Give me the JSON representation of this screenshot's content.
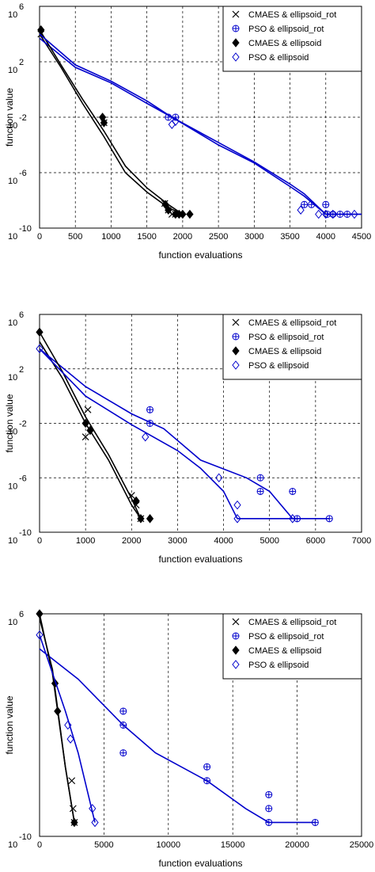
{
  "chart_data": [
    {
      "type": "line",
      "y_scale": "log",
      "xlabel": "function evaluations",
      "ylabel": "function value",
      "xlim": [
        0,
        4500
      ],
      "ylim": [
        1e-10,
        1000000.0
      ],
      "x_ticks": [
        "0",
        "500",
        "1000",
        "1500",
        "2000",
        "2500",
        "3000",
        "3500",
        "4000",
        "4500"
      ],
      "y_ticks": [
        {
          "base": "10",
          "exp": "6"
        },
        {
          "base": "10",
          "exp": "2"
        },
        {
          "base": "10",
          "exp": "-2"
        },
        {
          "base": "10",
          "exp": "-6"
        },
        {
          "base": "10",
          "exp": "-10"
        }
      ],
      "grid": "dashed",
      "legend_position": "top-right",
      "series": [
        {
          "name": "CMAES & ellipsoid_rot",
          "color": "#000000",
          "marker": "x",
          "line": [
            [
              0,
              10000
            ],
            [
              300,
              40
            ],
            [
              600,
              0.1
            ],
            [
              900,
              0.0004
            ],
            [
              1200,
              1e-06
            ],
            [
              1500,
              4e-08
            ],
            [
              1800,
              3e-09
            ],
            [
              2000,
              1e-09
            ]
          ],
          "points": [
            [
              20,
              10000
            ],
            [
              900,
              0.004
            ],
            [
              1750,
              6e-09
            ],
            [
              1800,
              2e-09
            ],
            [
              1850,
              1e-09
            ],
            [
              1900,
              1e-09
            ],
            [
              1950,
              1e-09
            ]
          ]
        },
        {
          "name": "PSO & ellipsoid_rot",
          "color": "#0000cc",
          "marker": "circle-plus",
          "line": [
            [
              0,
              5000
            ],
            [
              500,
              40
            ],
            [
              1000,
              3
            ],
            [
              1500,
              0.1
            ],
            [
              1850,
              0.01
            ],
            [
              2500,
              0.0001
            ],
            [
              3000,
              5e-06
            ],
            [
              3500,
              1e-07
            ],
            [
              3700,
              2e-08
            ],
            [
              4000,
              1e-09
            ],
            [
              4500,
              1e-09
            ]
          ],
          "points": [
            [
              1800,
              0.01
            ],
            [
              1900,
              0.01
            ],
            [
              3700,
              5e-09
            ],
            [
              3800,
              5e-09
            ],
            [
              4000,
              5e-09
            ],
            [
              4020,
              1e-09
            ],
            [
              4100,
              1e-09
            ],
            [
              4200,
              1e-09
            ],
            [
              4300,
              1e-09
            ]
          ]
        },
        {
          "name": "CMAES & ellipsoid",
          "color": "#000000",
          "marker": "diamond-filled",
          "line": [
            [
              0,
              20000
            ],
            [
              300,
              60
            ],
            [
              600,
              0.2
            ],
            [
              900,
              0.001
            ],
            [
              1200,
              3e-06
            ],
            [
              1500,
              8e-08
            ],
            [
              1800,
              5e-09
            ],
            [
              2000,
              1e-09
            ]
          ],
          "points": [
            [
              20,
              20000
            ],
            [
              880,
              0.01
            ],
            [
              900,
              0.004
            ],
            [
              1760,
              5e-09
            ],
            [
              1800,
              2e-09
            ],
            [
              1900,
              1e-09
            ],
            [
              1950,
              1e-09
            ],
            [
              2000,
              1e-09
            ],
            [
              2100,
              1e-09
            ]
          ]
        },
        {
          "name": "PSO & ellipsoid",
          "color": "#0000cc",
          "marker": "diamond",
          "line": [
            [
              0,
              10000
            ],
            [
              500,
              60
            ],
            [
              1000,
              4
            ],
            [
              1500,
              0.15
            ],
            [
              1850,
              0.01
            ],
            [
              2500,
              0.00015
            ],
            [
              3000,
              6e-06
            ],
            [
              3500,
              1.5e-07
            ],
            [
              3700,
              3e-08
            ],
            [
              4000,
              1e-09
            ],
            [
              4500,
              1e-09
            ]
          ],
          "points": [
            [
              1850,
              0.003
            ],
            [
              1900,
              0.005
            ],
            [
              3650,
              2e-09
            ],
            [
              3900,
              1e-09
            ],
            [
              4000,
              1e-09
            ],
            [
              4100,
              1e-09
            ],
            [
              4400,
              1e-09
            ]
          ]
        }
      ]
    },
    {
      "type": "line",
      "y_scale": "log",
      "xlabel": "function evaluations",
      "ylabel": "function value",
      "xlim": [
        0,
        7000
      ],
      "ylim": [
        1e-10,
        1000000.0
      ],
      "x_ticks": [
        "0",
        "1000",
        "2000",
        "3000",
        "4000",
        "5000",
        "6000",
        "7000"
      ],
      "y_ticks": [
        {
          "base": "10",
          "exp": "6"
        },
        {
          "base": "10",
          "exp": "2"
        },
        {
          "base": "10",
          "exp": "-2"
        },
        {
          "base": "10",
          "exp": "-6"
        },
        {
          "base": "10",
          "exp": "-10"
        }
      ],
      "grid": "dashed",
      "legend_position": "top-right",
      "series": [
        {
          "name": "CMAES & ellipsoid_rot",
          "color": "#000000",
          "marker": "x",
          "line": [
            [
              0,
              10000
            ],
            [
              500,
              20
            ],
            [
              1000,
              0.01
            ],
            [
              1500,
              2e-05
            ],
            [
              2000,
              1e-08
            ],
            [
              2200,
              1e-09
            ]
          ],
          "points": [
            [
              1050,
              0.1
            ],
            [
              1000,
              0.001
            ],
            [
              2000,
              5e-08
            ],
            [
              2100,
              1e-08
            ],
            [
              2200,
              1e-09
            ]
          ]
        },
        {
          "name": "PSO & ellipsoid_rot",
          "color": "#0000cc",
          "marker": "circle-plus",
          "line": [
            [
              0,
              3000
            ],
            [
              1000,
              5
            ],
            [
              2000,
              0.05
            ],
            [
              2700,
              0.004
            ],
            [
              3500,
              2e-05
            ],
            [
              4500,
              1e-06
            ],
            [
              5000,
              1e-07
            ],
            [
              5500,
              1e-09
            ],
            [
              6300,
              1e-09
            ]
          ],
          "points": [
            [
              2400,
              0.1
            ],
            [
              2400,
              0.01
            ],
            [
              4800,
              1e-06
            ],
            [
              4800,
              1e-07
            ],
            [
              5500,
              1e-07
            ],
            [
              5600,
              1e-09
            ],
            [
              6300,
              1e-09
            ]
          ]
        },
        {
          "name": "CMAES & ellipsoid",
          "color": "#000000",
          "marker": "diamond-filled",
          "line": [
            [
              0,
              50000
            ],
            [
              500,
              60
            ],
            [
              1000,
              0.03
            ],
            [
              1500,
              5e-05
            ],
            [
              2000,
              3e-08
            ],
            [
              2200,
              1e-09
            ]
          ],
          "points": [
            [
              0,
              50000
            ],
            [
              1000,
              0.01
            ],
            [
              1100,
              0.003
            ],
            [
              2100,
              2e-08
            ],
            [
              2200,
              1e-09
            ],
            [
              2400,
              1e-09
            ]
          ]
        },
        {
          "name": "PSO & ellipsoid",
          "color": "#0000cc",
          "marker": "diamond",
          "line": [
            [
              0,
              3000
            ],
            [
              1000,
              1
            ],
            [
              2000,
              0.008
            ],
            [
              3000,
              0.0001
            ],
            [
              3500,
              5e-06
            ],
            [
              4000,
              1e-07
            ],
            [
              4300,
              1e-09
            ],
            [
              5500,
              1e-09
            ]
          ],
          "points": [
            [
              0,
              3000
            ],
            [
              2300,
              0.001
            ],
            [
              3900,
              1e-06
            ],
            [
              4300,
              1e-08
            ],
            [
              4300,
              1e-09
            ],
            [
              5500,
              1e-09
            ]
          ]
        }
      ]
    },
    {
      "type": "line",
      "y_scale": "log",
      "xlabel": "function evaluations",
      "ylabel": "function value",
      "xlim": [
        0,
        25000
      ],
      "ylim": [
        1e-10,
        1000000.0
      ],
      "x_ticks": [
        "0",
        "5000",
        "10000",
        "15000",
        "20000",
        "25000"
      ],
      "y_ticks": [
        {
          "base": "10",
          "exp": "6"
        },
        {
          "base": "10",
          "exp": "-10"
        }
      ],
      "grid": "dashed-vertical",
      "legend_position": "top-right",
      "series": [
        {
          "name": "CMAES & ellipsoid_rot",
          "color": "#000000",
          "marker": "x",
          "line": [
            [
              0,
              500000
            ],
            [
              1000,
              100
            ],
            [
              2000,
              1e-05
            ],
            [
              2700,
              1e-09
            ]
          ],
          "points": [
            [
              2500,
              1e-06
            ],
            [
              2600,
              1e-08
            ],
            [
              2700,
              1e-09
            ]
          ]
        },
        {
          "name": "PSO & ellipsoid_rot",
          "color": "#0000cc",
          "marker": "circle-plus",
          "line": [
            [
              0,
              3000
            ],
            [
              3000,
              20
            ],
            [
              6500,
              0.01
            ],
            [
              9000,
              0.0001
            ],
            [
              13000,
              1e-06
            ],
            [
              16000,
              1e-08
            ],
            [
              17800,
              1e-09
            ],
            [
              21400,
              1e-09
            ]
          ],
          "points": [
            [
              6500,
              0.1
            ],
            [
              6500,
              0.01
            ],
            [
              6500,
              0.0001
            ],
            [
              13000,
              1e-05
            ],
            [
              13000,
              1e-06
            ],
            [
              17800,
              1e-07
            ],
            [
              17800,
              1e-08
            ],
            [
              17800,
              1e-09
            ],
            [
              21400,
              1e-09
            ]
          ]
        },
        {
          "name": "CMAES & ellipsoid",
          "color": "#000000",
          "marker": "diamond-filled",
          "line": [
            [
              0,
              1000000
            ],
            [
              1000,
              50
            ],
            [
              2000,
              1e-05
            ],
            [
              2700,
              1e-09
            ]
          ],
          "points": [
            [
              0,
              1000000
            ],
            [
              1200,
              10
            ],
            [
              1400,
              0.1
            ],
            [
              2700,
              1e-09
            ]
          ]
        },
        {
          "name": "PSO & ellipsoid",
          "color": "#0000cc",
          "marker": "diamond",
          "line": [
            [
              0,
              30000
            ],
            [
              2000,
              0.1
            ],
            [
              3000,
              0.0001
            ],
            [
              4300,
              1e-09
            ]
          ],
          "points": [
            [
              0,
              30000
            ],
            [
              2200,
              0.01
            ],
            [
              2400,
              0.001
            ],
            [
              4100,
              1e-08
            ],
            [
              4300,
              1e-09
            ]
          ]
        }
      ]
    }
  ]
}
